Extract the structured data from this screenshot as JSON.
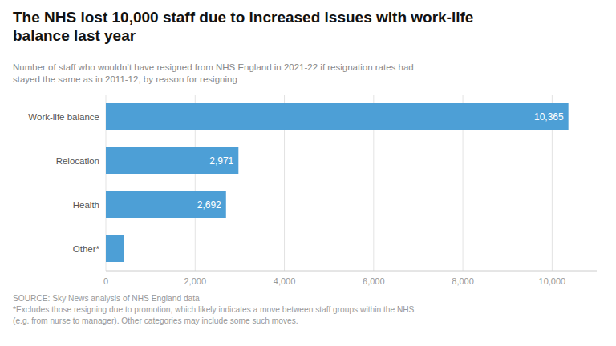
{
  "chart_data": {
    "type": "bar",
    "orientation": "horizontal",
    "title": "The NHS lost 10,000 staff due to increased issues with work-life\nbalance last year",
    "subtitle": "Number of staff who wouldn’t have resigned from NHS England in 2021-22 if resignation rates had\nstayed the same as in 2011-12, by reason for resigning",
    "annotations": [
      "SOURCE: Sky News analysis of NHS England data\n*Excludes those resigning due to promotion, which likely indicates a move between staff groups within the NHS\n(e.g. from nurse to manager). Other categories may include some such moves."
    ],
    "categories": [
      "Other*",
      "Health",
      "Relocation",
      "Work-life balance"
    ],
    "values": [
      400,
      2692,
      2971,
      10365
    ],
    "value_labels": [
      null,
      "2,692",
      "2,971",
      "10,365"
    ],
    "data_labels": true,
    "color": "#4d9fd6",
    "xlim": [
      0,
      11000
    ],
    "xticks": [
      0,
      {
        "value": 2000,
        "label": "2,000"
      },
      {
        "value": 4000,
        "label": "4,000"
      },
      {
        "value": 6000,
        "label": "6,000"
      },
      {
        "value": 8000,
        "label": "8,000"
      },
      {
        "value": 10000,
        "label": "10,000"
      }
    ],
    "grid": true
  }
}
